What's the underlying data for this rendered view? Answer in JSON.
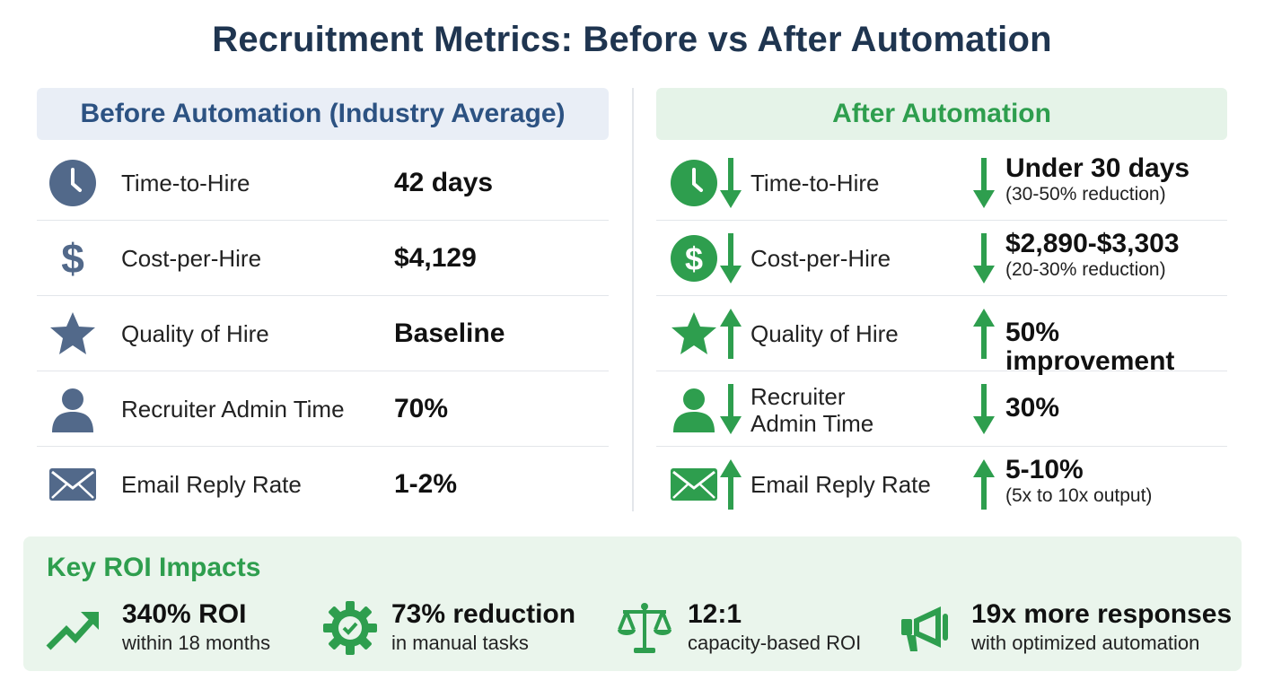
{
  "title": "Recruitment Metrics: Before vs After Automation",
  "colors": {
    "navy": "#1f3550",
    "slate": "#52698a",
    "green": "#2e9e4e",
    "green_bg": "#eaf5ec"
  },
  "before": {
    "header": "Before Automation (Industry Average)",
    "rows": [
      {
        "icon": "clock-icon",
        "label": "Time-to-Hire",
        "value": "42 days"
      },
      {
        "icon": "dollar-icon",
        "label": "Cost-per-Hire",
        "value": "$4,129"
      },
      {
        "icon": "star-icon",
        "label": "Quality of Hire",
        "value": "Baseline"
      },
      {
        "icon": "user-icon",
        "label": "Recruiter Admin Time",
        "value": "70%"
      },
      {
        "icon": "envelope-icon",
        "label": "Email Reply Rate",
        "value": "1-2%"
      }
    ]
  },
  "after": {
    "header": "After Automation",
    "rows": [
      {
        "icon": "clock-icon",
        "direction": "down",
        "label": "Time-to-Hire",
        "value": "Under 30 days",
        "note": "(30-50% reduction)"
      },
      {
        "icon": "dollar-icon",
        "direction": "down",
        "label": "Cost-per-Hire",
        "value": "$2,890-$3,303",
        "note": "(20-30% reduction)"
      },
      {
        "icon": "star-icon",
        "direction": "up",
        "label": "Quality of Hire",
        "value": "50% improvement",
        "note": ""
      },
      {
        "icon": "user-icon",
        "direction": "down",
        "label_line1": "Recruiter",
        "label_line2": "Admin Time",
        "value": "30%",
        "note": ""
      },
      {
        "icon": "envelope-icon",
        "direction": "up",
        "label": "Email Reply Rate",
        "value": "5-10%",
        "note": "(5x to 10x output)"
      }
    ]
  },
  "roi": {
    "title": "Key ROI Impacts",
    "items": [
      {
        "icon": "trending-up-icon",
        "headline": "340% ROI",
        "caption": "within 18 months"
      },
      {
        "icon": "gear-check-icon",
        "headline": "73% reduction",
        "caption": "in manual tasks"
      },
      {
        "icon": "scales-icon",
        "headline": "12:1",
        "caption": "capacity-based ROI"
      },
      {
        "icon": "megaphone-icon",
        "headline": "19x more responses",
        "caption": "with optimized automation"
      }
    ]
  }
}
